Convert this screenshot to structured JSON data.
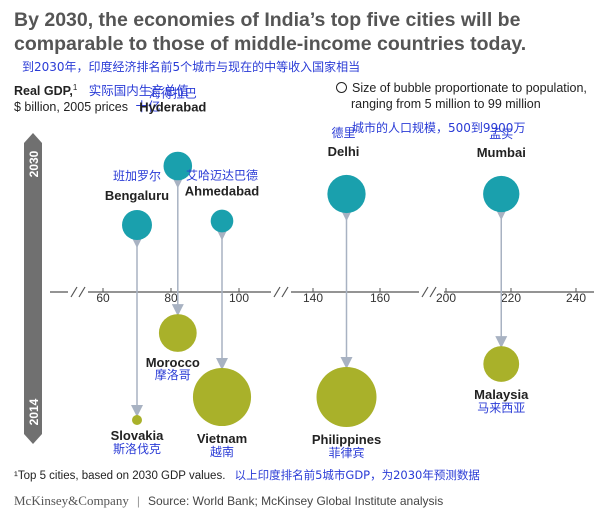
{
  "title": "By 2030, the economies of India’s top five cities will be comparable to those of middle-income countries today.",
  "subtitle_cn": "到2030年，印度经济排名前5个城市与现在的中等收入国家相当",
  "ylabel": {
    "main": "Real GDP,",
    "sup": "1",
    "cn": "实际国内生产总值",
    "units": "$ billion, 2005 prices",
    "units_cn": "十亿"
  },
  "size_note": {
    "line1": "Size of bubble proportionate to population,",
    "line2": "ranging from 5 million to 99 million",
    "cn": "城市的人口规模，500到9900万"
  },
  "footnote": {
    "text": "¹Top 5 cities, based on 2030 GDP values.",
    "cn": "以上印度排名前5城市GDP，为2030年预测数据"
  },
  "source": {
    "brand": "McKinsey&Company",
    "text": "Source: World Bank; McKinsey Global Institute analysis"
  },
  "colors": {
    "city": "#1aa0ad",
    "country": "#a9b12a",
    "arrow": "#a8b2c2",
    "bar": "#707070",
    "axis": "#555555",
    "cn": "#2a3bd6"
  },
  "chart_data": {
    "type": "scatter",
    "title": "By 2030, the economies of India’s top five cities will be comparable to those of middle-income countries today.",
    "xlabel": "Real GDP, $ billion, 2005 prices",
    "xlim": [
      50,
      240
    ],
    "x_ticks": [
      "60",
      "80",
      "100",
      "140",
      "160",
      "200",
      "220",
      "240"
    ],
    "year_labels": {
      "top": "2030",
      "bottom": "2014"
    },
    "cities_2030": [
      {
        "name": "Hyderabad",
        "cn": "海得拉巴",
        "gdp": 82,
        "pop_m": 18
      },
      {
        "name": "Bengaluru",
        "cn": "班加罗尔",
        "gdp": 70,
        "pop_m": 20
      },
      {
        "name": "Ahmedabad",
        "cn": "艾哈迈达巴德",
        "gdp": 95,
        "pop_m": 11
      },
      {
        "name": "Delhi",
        "cn": "德里",
        "gdp": 150,
        "pop_m": 35
      },
      {
        "name": "Mumbai",
        "cn": "孟买",
        "gdp": 217,
        "pop_m": 31
      }
    ],
    "countries_2014": [
      {
        "name": "Morocco",
        "cn": "摩洛哥",
        "gdp": 82,
        "pop_m": 34,
        "compares_to": "Hyderabad"
      },
      {
        "name": "Slovakia",
        "cn": "斯洛伐克",
        "gdp": 70,
        "pop_m": 5,
        "compares_to": "Bengaluru"
      },
      {
        "name": "Vietnam",
        "cn": "越南",
        "gdp": 95,
        "pop_m": 92,
        "compares_to": "Ahmedabad"
      },
      {
        "name": "Philippines",
        "cn": "菲律宾",
        "gdp": 150,
        "pop_m": 99,
        "compares_to": "Delhi"
      },
      {
        "name": "Malaysia",
        "cn": "马来西亚",
        "gdp": 217,
        "pop_m": 30,
        "compares_to": "Mumbai"
      }
    ]
  }
}
